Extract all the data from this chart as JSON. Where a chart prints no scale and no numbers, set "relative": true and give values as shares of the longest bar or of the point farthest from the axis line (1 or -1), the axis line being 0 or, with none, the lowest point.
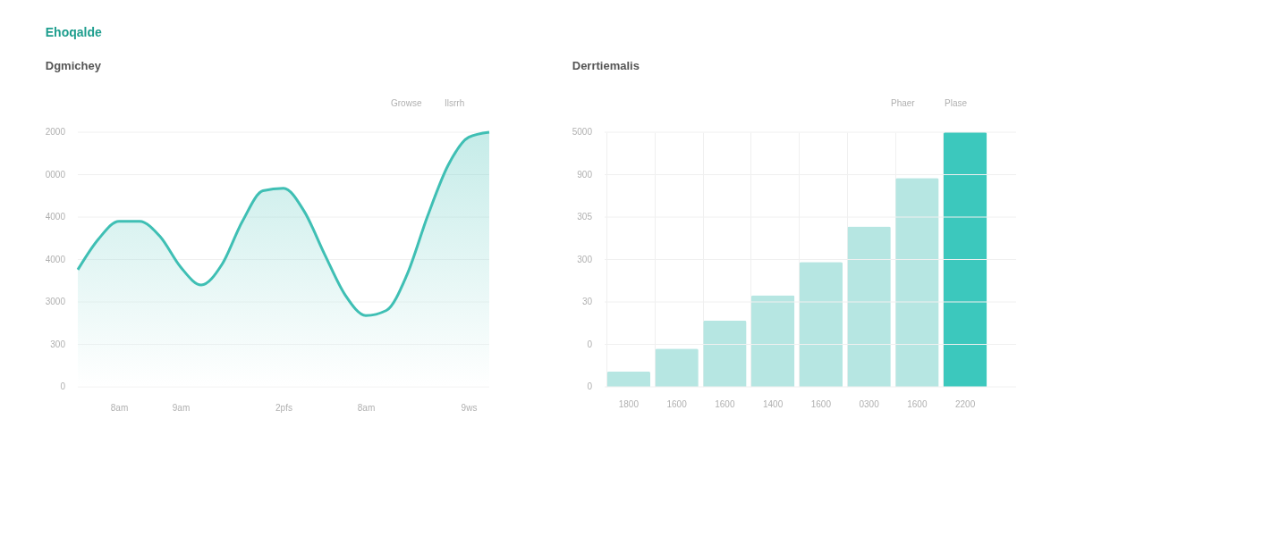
{
  "chart_data": [
    {
      "type": "area",
      "title": "Dgmichey",
      "relative": true,
      "annotations": [
        "Ehoqalde",
        "Growse",
        "Ilsrrh",
        "2000",
        "0000",
        "4000",
        "4000",
        "3000",
        "300",
        "0"
      ],
      "categories": [
        null,
        null,
        "8am",
        null,
        null,
        "9am",
        null,
        null,
        null,
        null,
        "2pfs",
        null,
        null,
        null,
        "8am",
        null,
        null,
        null,
        null,
        "9ws",
        null
      ],
      "series": [
        {
          "color": "#3fbfb4",
          "values": [
            0.46,
            0.58,
            0.65,
            0.65,
            0.59,
            0.47,
            0.4,
            0.48,
            0.65,
            0.77,
            0.78,
            0.69,
            0.52,
            0.36,
            0.28,
            0.3,
            0.44,
            0.67,
            0.87,
            0.98,
            1
          ]
        }
      ],
      "grid": "y"
    },
    {
      "type": "bar",
      "title": "Derrtiemalis",
      "relative": true,
      "annotations": [
        "Phaer",
        "Plase",
        "5000",
        "900",
        "305",
        "300",
        "30",
        "0",
        "0"
      ],
      "categories": [
        "1800",
        "1600",
        "1600",
        "1400",
        "1600",
        "0300",
        "1600",
        "2200"
      ],
      "values": [
        0.06,
        0.15,
        0.26,
        0.36,
        0.49,
        0.63,
        0.82,
        1
      ],
      "colors": [
        "#b6e6e2",
        "#b6e6e2",
        "#b6e6e2",
        "#b6e6e2",
        "#b6e6e2",
        "#b6e6e2",
        "#b6e6e2",
        "#3cc8bd"
      ],
      "grid": true
    }
  ]
}
